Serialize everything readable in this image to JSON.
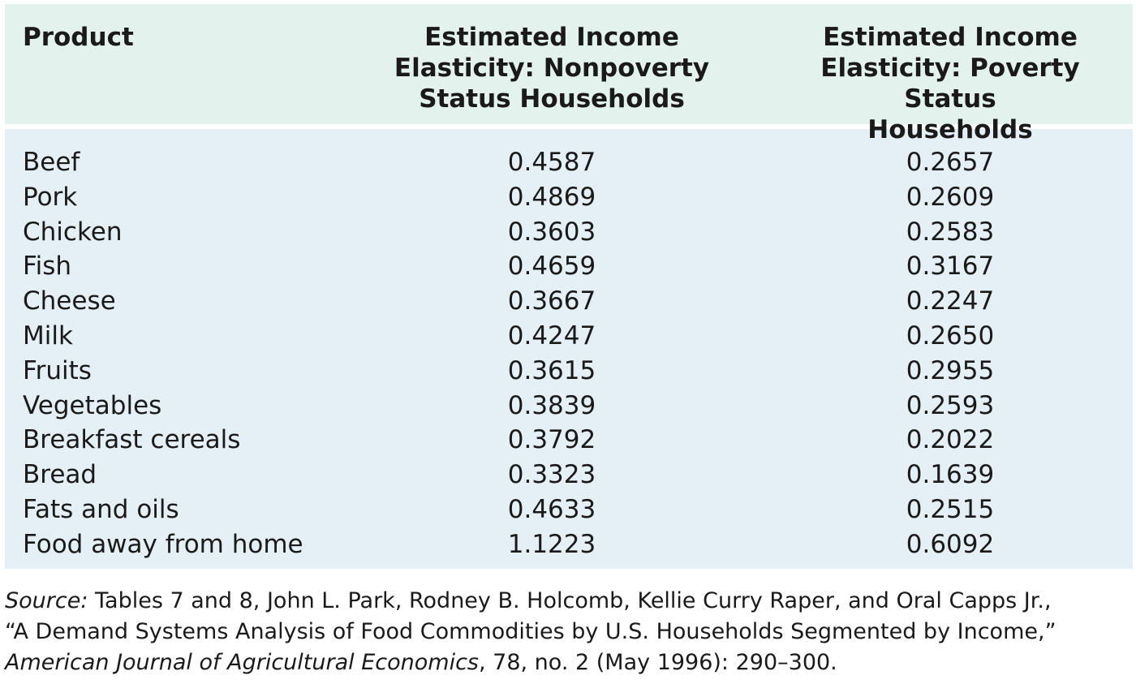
{
  "colors": {
    "header_bg": "#e3f2ec",
    "body_bg": "#e4eff6",
    "text": "#1a1a1a"
  },
  "table": {
    "headers": {
      "product": "Product",
      "nonpoverty": [
        "Estimated Income",
        "Elasticity: Nonpoverty",
        "Status Households"
      ],
      "poverty": [
        "Estimated Income",
        "Elasticity: Poverty Status",
        "Households"
      ]
    },
    "rows": [
      {
        "product": "Beef",
        "nonpoverty": "0.4587",
        "poverty": "0.2657"
      },
      {
        "product": "Pork",
        "nonpoverty": "0.4869",
        "poverty": "0.2609"
      },
      {
        "product": "Chicken",
        "nonpoverty": "0.3603",
        "poverty": "0.2583"
      },
      {
        "product": "Fish",
        "nonpoverty": "0.4659",
        "poverty": "0.3167"
      },
      {
        "product": "Cheese",
        "nonpoverty": "0.3667",
        "poverty": "0.2247"
      },
      {
        "product": "Milk",
        "nonpoverty": "0.4247",
        "poverty": "0.2650"
      },
      {
        "product": "Fruits",
        "nonpoverty": "0.3615",
        "poverty": "0.2955"
      },
      {
        "product": "Vegetables",
        "nonpoverty": "0.3839",
        "poverty": "0.2593"
      },
      {
        "product": "Breakfast cereals",
        "nonpoverty": "0.3792",
        "poverty": "0.2022"
      },
      {
        "product": "Bread",
        "nonpoverty": "0.3323",
        "poverty": "0.1639"
      },
      {
        "product": "Fats and oils",
        "nonpoverty": "0.4633",
        "poverty": "0.2515"
      },
      {
        "product": "Food away from home",
        "nonpoverty": "1.1223",
        "poverty": "0.6092"
      }
    ]
  },
  "source": {
    "label": "Source:",
    "line1": " Tables 7 and 8, John L. Park, Rodney B. Holcomb, Kellie Curry Raper, and Oral Capps Jr.,",
    "line2": "“A Demand Systems Analysis of Food Commodities by U.S. Households Segmented by Income,”",
    "journal": "American Journal of Agricultural Economics",
    "line3_rest": ", 78, no. 2 (May 1996): 290–300."
  }
}
